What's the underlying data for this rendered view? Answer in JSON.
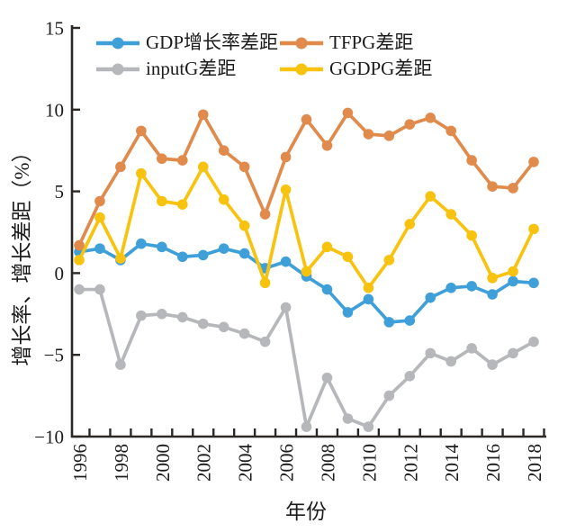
{
  "chart_data": {
    "type": "line",
    "x": [
      1996,
      1997,
      1998,
      1999,
      2000,
      2001,
      2002,
      2003,
      2004,
      2005,
      2006,
      2007,
      2008,
      2009,
      2010,
      2011,
      2012,
      2013,
      2014,
      2015,
      2016,
      2017,
      2018
    ],
    "series": [
      {
        "id": "gdp-growth-gap",
        "name": "GDP增长率差距",
        "color": "#3f9fd8",
        "values": [
          1.3,
          1.5,
          0.8,
          1.8,
          1.6,
          1.0,
          1.1,
          1.5,
          1.2,
          0.3,
          0.7,
          -0.2,
          -1.0,
          -2.4,
          -1.6,
          -3.0,
          -2.9,
          -1.5,
          -0.9,
          -0.8,
          -1.3,
          -0.5,
          -0.6
        ]
      },
      {
        "id": "tfpg-gap",
        "name": "TFPG差距",
        "color": "#e08a4c",
        "values": [
          1.7,
          4.4,
          6.5,
          8.7,
          7.0,
          6.9,
          9.7,
          7.5,
          6.5,
          3.6,
          7.1,
          9.4,
          7.8,
          9.8,
          8.5,
          8.4,
          9.1,
          9.5,
          8.7,
          6.9,
          5.3,
          5.2,
          6.8
        ]
      },
      {
        "id": "inputg-gap",
        "name": "inputG差距",
        "color": "#b5b7ba",
        "values": [
          -1.0,
          -1.0,
          -5.6,
          -2.6,
          -2.5,
          -2.7,
          -3.1,
          -3.3,
          -3.7,
          -4.2,
          -2.1,
          -9.4,
          -6.4,
          -8.9,
          -9.4,
          -7.5,
          -6.3,
          -4.9,
          -5.4,
          -4.6,
          -5.6,
          -4.9,
          -4.2
        ]
      },
      {
        "id": "ggdpg-gap",
        "name": "GGDPG差距",
        "color": "#f7c30e",
        "values": [
          0.8,
          3.4,
          0.9,
          6.1,
          4.4,
          4.2,
          6.5,
          4.5,
          2.9,
          -0.6,
          5.1,
          0.1,
          1.6,
          1.0,
          -0.9,
          0.8,
          3.0,
          4.7,
          3.6,
          2.3,
          -0.3,
          0.1,
          2.7
        ]
      }
    ],
    "xlabel": "年份",
    "ylabel": "增长率、增长差距（%）",
    "ylim": [
      -10,
      15
    ],
    "yticks": [
      15,
      10,
      5,
      0,
      -5,
      -10
    ],
    "ytick_labels": [
      "15",
      "10",
      "5",
      "0",
      "−5",
      "−10"
    ],
    "xtick_label_years": [
      1996,
      1998,
      2000,
      2002,
      2004,
      2006,
      2008,
      2010,
      2012,
      2014,
      2016,
      2018
    ],
    "legend_position": "top",
    "legend_rows": [
      [
        "GDP增长率差距",
        "TFPG差距"
      ],
      [
        "inputG差距",
        "GGDPG差距"
      ]
    ],
    "grid": false,
    "axis_color": "#2c2825"
  }
}
